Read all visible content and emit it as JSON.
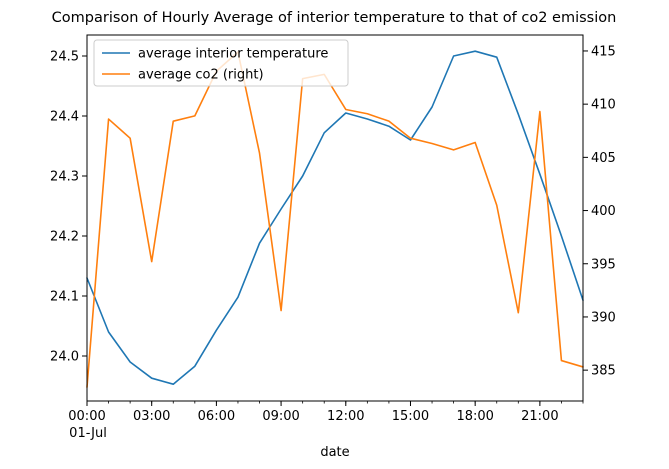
{
  "chart_data": {
    "type": "line",
    "title": "Comparison of Hourly Average of interior temperature to that of co2 emission",
    "xlabel": "date",
    "x": [
      "00:00",
      "01:00",
      "02:00",
      "03:00",
      "04:00",
      "05:00",
      "06:00",
      "07:00",
      "08:00",
      "09:00",
      "10:00",
      "11:00",
      "12:00",
      "13:00",
      "14:00",
      "15:00",
      "16:00",
      "17:00",
      "18:00",
      "19:00",
      "20:00",
      "21:00",
      "22:00",
      "23:00"
    ],
    "x_ticks": [
      {
        "label": "00:00",
        "sublabel": "01-Jul",
        "index": 0
      },
      {
        "label": "03:00",
        "index": 3
      },
      {
        "label": "06:00",
        "index": 6
      },
      {
        "label": "09:00",
        "index": 9
      },
      {
        "label": "12:00",
        "index": 12
      },
      {
        "label": "15:00",
        "index": 15
      },
      {
        "label": "18:00",
        "index": 18
      },
      {
        "label": "21:00",
        "index": 21
      }
    ],
    "y_left": {
      "ylim": [
        23.925,
        24.535
      ],
      "ticks": [
        "24.0",
        "24.1",
        "24.2",
        "24.3",
        "24.4",
        "24.5"
      ]
    },
    "y_right": {
      "ylim": [
        382.1,
        416.5
      ],
      "ticks": [
        "385",
        "390",
        "395",
        "400",
        "405",
        "410",
        "415"
      ]
    },
    "legend_position": "top-left",
    "series": [
      {
        "name": "average interior temperature",
        "axis": "left",
        "color": "#1f77b4",
        "values": [
          24.13,
          24.04,
          23.99,
          23.963,
          23.953,
          23.983,
          24.043,
          24.098,
          24.188,
          24.245,
          24.3,
          24.372,
          24.405,
          24.395,
          24.383,
          24.36,
          24.415,
          24.5,
          24.508,
          24.498,
          24.403,
          24.303,
          24.2,
          24.093
        ]
      },
      {
        "name": "average co2 (right)",
        "axis": "right",
        "color": "#ff7f0e",
        "values": [
          383.4,
          408.6,
          406.8,
          395.2,
          408.4,
          408.9,
          413.1,
          414.9,
          405.4,
          390.6,
          412.4,
          412.8,
          409.5,
          409.1,
          408.4,
          406.8,
          406.3,
          405.7,
          406.4,
          400.5,
          390.4,
          409.3,
          385.9,
          385.3
        ]
      }
    ]
  }
}
